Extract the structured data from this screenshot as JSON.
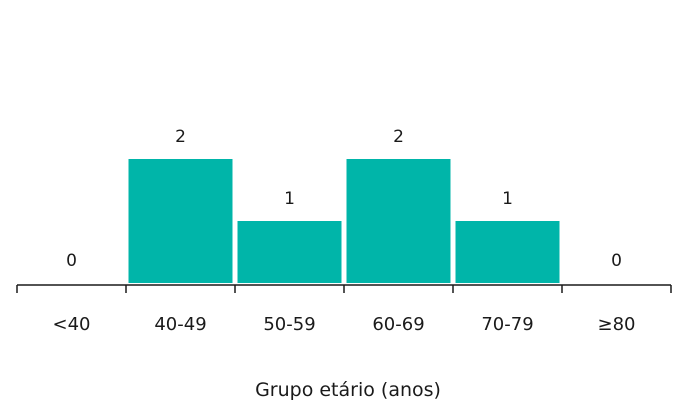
{
  "chart_data": {
    "type": "bar",
    "title": "",
    "xlabel": "Grupo etário (anos)",
    "ylabel": "",
    "categories": [
      "<40",
      "40-49",
      "50-59",
      "60-69",
      "70-79",
      "≥80"
    ],
    "values": [
      0,
      2,
      1,
      2,
      1,
      0
    ],
    "data_labels": [
      "0",
      "2",
      "1",
      "2",
      "1",
      "0"
    ],
    "ylim": [
      0,
      3
    ],
    "grid": false,
    "bar_color": "#00b5a9",
    "axis_color": "#1a1a1a",
    "text_color": "#1a1a1a"
  }
}
